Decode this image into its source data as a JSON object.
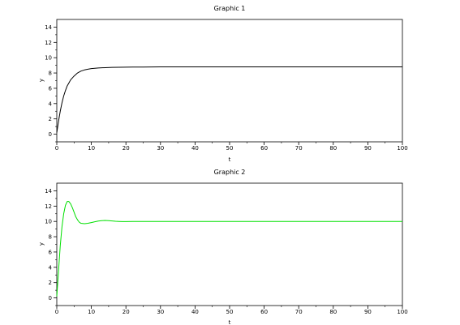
{
  "chart_data": [
    {
      "type": "line",
      "title": "Graphic 1",
      "xlabel": "t",
      "ylabel": "y",
      "xlim": [
        0,
        100
      ],
      "ylim": [
        -1,
        15
      ],
      "xticks": [
        0,
        10,
        20,
        30,
        40,
        50,
        60,
        70,
        80,
        90,
        100
      ],
      "yticks": [
        0,
        2,
        4,
        6,
        8,
        10,
        12,
        14
      ],
      "grid": false,
      "series": [
        {
          "color": "#000000",
          "x": [
            0,
            0.5,
            1,
            1.5,
            2,
            2.5,
            3,
            3.5,
            4,
            5,
            6,
            7,
            8,
            9,
            10,
            12,
            14,
            16,
            18,
            20,
            22,
            25,
            30,
            40,
            50,
            60,
            70,
            80,
            90,
            100
          ],
          "y": [
            0.2,
            1.7,
            3.0,
            4.1,
            5.0,
            5.7,
            6.3,
            6.7,
            7.1,
            7.6,
            8.0,
            8.25,
            8.4,
            8.5,
            8.58,
            8.66,
            8.7,
            8.73,
            8.75,
            8.76,
            8.77,
            8.78,
            8.8,
            8.8,
            8.8,
            8.8,
            8.8,
            8.8,
            8.8,
            8.8
          ]
        }
      ]
    },
    {
      "type": "line",
      "title": "Graphic 2",
      "xlabel": "t",
      "ylabel": "y",
      "xlim": [
        0,
        100
      ],
      "ylim": [
        -1,
        15
      ],
      "xticks": [
        0,
        10,
        20,
        30,
        40,
        50,
        60,
        70,
        80,
        90,
        100
      ],
      "yticks": [
        0,
        2,
        4,
        6,
        8,
        10,
        12,
        14
      ],
      "grid": false,
      "series": [
        {
          "color": "#00e000",
          "x": [
            0,
            0.5,
            1,
            1.5,
            2,
            2.5,
            3,
            3.5,
            4,
            4.5,
            5,
            5.5,
            6,
            6.5,
            7,
            8,
            9,
            10,
            11,
            12,
            13,
            14,
            15,
            16,
            17,
            18,
            19,
            20,
            22,
            25,
            30,
            40,
            50,
            60,
            70,
            80,
            90,
            100
          ],
          "y": [
            0.2,
            3.5,
            6.8,
            9.3,
            11.0,
            12.1,
            12.6,
            12.6,
            12.3,
            11.8,
            11.2,
            10.6,
            10.2,
            9.9,
            9.75,
            9.7,
            9.75,
            9.85,
            9.95,
            10.05,
            10.1,
            10.12,
            10.1,
            10.06,
            10.02,
            10.0,
            9.98,
            9.98,
            9.99,
            10.0,
            10.0,
            10.0,
            10.0,
            10.0,
            10.0,
            10.0,
            10.0,
            10.0
          ]
        }
      ]
    }
  ]
}
